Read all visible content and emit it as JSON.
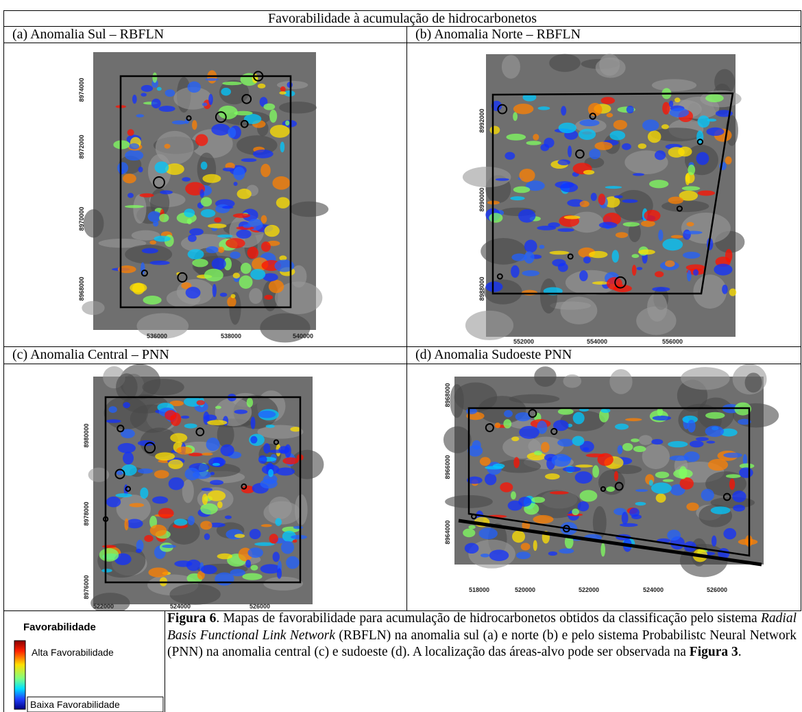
{
  "header": "Favorabilidade à acumulação de hidrocarbonetos",
  "panels": [
    {
      "title": "(a) Anomalia Sul – RBFLN",
      "yticks": [
        8974000,
        8972000,
        8970000,
        8968000
      ],
      "xticks": [
        536000,
        538000,
        540000
      ]
    },
    {
      "title": "(b) Anomalia Norte – RBFLN",
      "yticks": [
        8992000,
        8990000,
        8988000
      ],
      "xticks": [
        552000,
        554000,
        556000
      ]
    },
    {
      "title": "(c) Anomalia Central – PNN",
      "yticks": [
        8980000,
        8978000,
        8976000
      ],
      "xticks": [
        522000,
        524000,
        526000
      ]
    },
    {
      "title": "(d) Anomalia Sudoeste PNN",
      "yticks": [
        8968000,
        8966000,
        8964000
      ],
      "xticks": [
        518000,
        520000,
        522000,
        524000,
        526000
      ]
    }
  ],
  "legend": {
    "title": "Favorabilidade",
    "high": "Alta Favorabilidade",
    "low": "Baixa Favorabilidade"
  },
  "caption": {
    "parts": [
      "Figura 6",
      ". Mapas de favorabilidade para acumulação de hidrocarbonetos obtidos da classificação pelo sistema ",
      "Radial Basis Functional Link Network",
      " (RBFLN) na anomalia sul (a) e norte (b) e pelo sistema Probabilistc Neural Network (PNN) na anomalia central (c) e sudoeste (d). A localização das áreas-alvo pode ser observada na ",
      "Figura 3",
      "."
    ]
  }
}
